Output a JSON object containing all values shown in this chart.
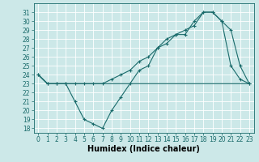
{
  "xlabel": "Humidex (Indice chaleur)",
  "bg_color": "#cce8e8",
  "line_color": "#1a6b6b",
  "grid_color": "#ffffff",
  "xlim": [
    -0.5,
    23.5
  ],
  "ylim": [
    17.5,
    32.0
  ],
  "xticks": [
    0,
    1,
    2,
    3,
    4,
    5,
    6,
    7,
    8,
    9,
    10,
    11,
    12,
    13,
    14,
    15,
    16,
    17,
    18,
    19,
    20,
    21,
    22,
    23
  ],
  "yticks": [
    18,
    19,
    20,
    21,
    22,
    23,
    24,
    25,
    26,
    27,
    28,
    29,
    30,
    31
  ],
  "line1_x": [
    0,
    1,
    2,
    3,
    4,
    5,
    6,
    7,
    8,
    9,
    10,
    11,
    12,
    13,
    14,
    15,
    16,
    17,
    18,
    19,
    20,
    21,
    22,
    23
  ],
  "line1_y": [
    24.0,
    23.0,
    23.0,
    23.0,
    21.0,
    19.0,
    18.5,
    18.0,
    20.0,
    21.5,
    23.0,
    24.5,
    25.0,
    27.0,
    28.0,
    28.5,
    28.5,
    30.0,
    31.0,
    31.0,
    30.0,
    29.0,
    25.0,
    23.0
  ],
  "line2_x": [
    0,
    1,
    2,
    3,
    4,
    5,
    6,
    7,
    8,
    9,
    10,
    11,
    12,
    13,
    14,
    15,
    16,
    17,
    18,
    19,
    20,
    21,
    22,
    23
  ],
  "line2_y": [
    24.0,
    23.0,
    23.0,
    23.0,
    23.0,
    23.0,
    23.0,
    23.0,
    23.0,
    23.0,
    23.0,
    23.0,
    23.0,
    23.0,
    23.0,
    23.0,
    23.0,
    23.0,
    23.0,
    23.0,
    23.0,
    23.0,
    23.0,
    23.0
  ],
  "line3_x": [
    0,
    1,
    2,
    3,
    4,
    5,
    6,
    7,
    8,
    9,
    10,
    11,
    12,
    13,
    14,
    15,
    16,
    17,
    18,
    19,
    20,
    21,
    22,
    23
  ],
  "line3_y": [
    24.0,
    23.0,
    23.0,
    23.0,
    23.0,
    23.0,
    23.0,
    23.0,
    23.5,
    24.0,
    24.5,
    25.5,
    26.0,
    27.0,
    27.5,
    28.5,
    29.0,
    29.5,
    31.0,
    31.0,
    30.0,
    25.0,
    23.5,
    23.0
  ],
  "tick_fontsize": 5.5,
  "xlabel_fontsize": 7
}
